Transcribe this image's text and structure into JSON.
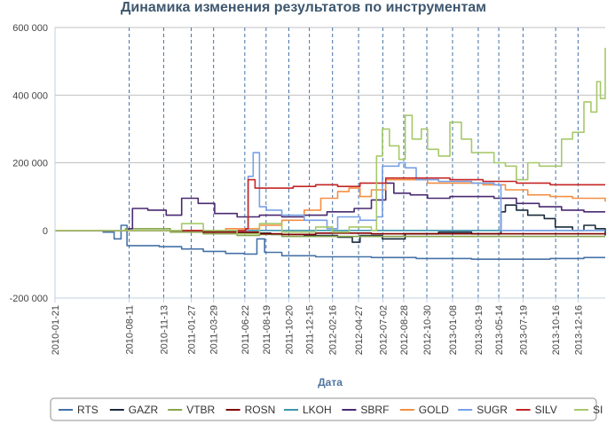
{
  "chart_data": {
    "type": "line",
    "title": "Динамика изменения результатов по инструментам",
    "xlabel": "Дата",
    "ylabel": "",
    "ylim": [
      -200000,
      600000
    ],
    "yticks": [
      -200000,
      0,
      200000,
      400000,
      600000
    ],
    "ytick_labels": [
      "-200 000",
      "0",
      "200 000",
      "400 000",
      "600 000"
    ],
    "xlim": [
      "2010-01-21",
      "2014-02-28"
    ],
    "xticks": [
      "2010-01-21",
      "2010-08-11",
      "2010-11-13",
      "2011-01-27",
      "2011-03-29",
      "2011-06-22",
      "2011-08-19",
      "2011-10-20",
      "2011-12-15",
      "2012-02-16",
      "2012-04-27",
      "2012-07-02",
      "2012-08-28",
      "2012-10-30",
      "2013-01-08",
      "2013-03-19",
      "2013-05-14",
      "2013-07-19",
      "2013-10-16",
      "2013-12-16"
    ],
    "grid": true,
    "legend": "bottom",
    "series": [
      {
        "name": "RTS",
        "color": "#4572a7",
        "points": [
          [
            "2010-01-21",
            0
          ],
          [
            "2010-06-01",
            -5000
          ],
          [
            "2010-07-01",
            -25000
          ],
          [
            "2010-07-20",
            15000
          ],
          [
            "2010-08-05",
            -45000
          ],
          [
            "2010-11-01",
            -48000
          ],
          [
            "2011-01-01",
            -55000
          ],
          [
            "2011-03-01",
            -62000
          ],
          [
            "2011-05-01",
            -68000
          ],
          [
            "2011-06-20",
            -70000
          ],
          [
            "2011-07-20",
            -70000
          ],
          [
            "2011-07-25",
            -25000
          ],
          [
            "2011-08-15",
            -65000
          ],
          [
            "2011-10-01",
            -75000
          ],
          [
            "2012-01-01",
            -78000
          ],
          [
            "2012-06-01",
            -80000
          ],
          [
            "2012-10-01",
            -83000
          ],
          [
            "2013-03-01",
            -85000
          ],
          [
            "2013-07-01",
            -85000
          ],
          [
            "2013-10-01",
            -83000
          ],
          [
            "2014-01-01",
            -80000
          ],
          [
            "2014-02-28",
            -80000
          ]
        ]
      },
      {
        "name": "GAZR",
        "color": "#1a2b3c",
        "points": [
          [
            "2010-01-21",
            0
          ],
          [
            "2010-12-01",
            -3000
          ],
          [
            "2011-06-01",
            -8000
          ],
          [
            "2011-09-01",
            -12000
          ],
          [
            "2011-12-01",
            -15000
          ],
          [
            "2012-03-01",
            -20000
          ],
          [
            "2012-04-10",
            -35000
          ],
          [
            "2012-05-01",
            -15000
          ],
          [
            "2012-07-01",
            -25000
          ],
          [
            "2012-09-01",
            -10000
          ],
          [
            "2012-12-01",
            -5000
          ],
          [
            "2013-03-01",
            -10000
          ],
          [
            "2013-05-10",
            -10000
          ],
          [
            "2013-05-20",
            55000
          ],
          [
            "2013-06-01",
            75000
          ],
          [
            "2013-07-01",
            60000
          ],
          [
            "2013-08-01",
            45000
          ],
          [
            "2013-09-15",
            35000
          ],
          [
            "2013-10-15",
            10000
          ],
          [
            "2013-12-01",
            0
          ],
          [
            "2014-01-01",
            15000
          ],
          [
            "2014-02-01",
            5000
          ],
          [
            "2014-02-28",
            -15000
          ]
        ]
      },
      {
        "name": "VTBR",
        "color": "#89a54e",
        "points": [
          [
            "2010-01-21",
            0
          ],
          [
            "2010-08-01",
            5000
          ],
          [
            "2010-12-01",
            -5000
          ],
          [
            "2011-03-01",
            -10000
          ],
          [
            "2011-06-01",
            -15000
          ],
          [
            "2011-08-01",
            -12000
          ],
          [
            "2011-10-01",
            -18000
          ],
          [
            "2012-01-01",
            -18000
          ],
          [
            "2012-06-01",
            -18000
          ],
          [
            "2013-01-01",
            -18000
          ],
          [
            "2013-06-01",
            -18000
          ],
          [
            "2014-02-28",
            -18000
          ]
        ]
      },
      {
        "name": "ROSN",
        "color": "#800000",
        "points": [
          [
            "2010-01-21",
            0
          ],
          [
            "2010-12-01",
            0
          ],
          [
            "2011-03-01",
            -5000
          ],
          [
            "2011-06-01",
            -5000
          ],
          [
            "2011-08-01",
            -10000
          ],
          [
            "2011-10-01",
            -12000
          ],
          [
            "2012-01-01",
            -8000
          ],
          [
            "2012-06-01",
            -10000
          ],
          [
            "2013-01-01",
            -10000
          ],
          [
            "2013-06-01",
            -10000
          ],
          [
            "2014-02-28",
            -10000
          ]
        ]
      },
      {
        "name": "LKOH",
        "color": "#3d96ae",
        "points": [
          [
            "2010-01-21",
            0
          ],
          [
            "2011-06-01",
            0
          ],
          [
            "2012-06-01",
            0
          ],
          [
            "2013-06-01",
            0
          ],
          [
            "2014-02-28",
            0
          ]
        ]
      },
      {
        "name": "SBRF",
        "color": "#492970",
        "points": [
          [
            "2010-01-21",
            0
          ],
          [
            "2010-08-10",
            5000
          ],
          [
            "2010-08-20",
            65000
          ],
          [
            "2010-10-01",
            60000
          ],
          [
            "2010-11-20",
            45000
          ],
          [
            "2011-01-01",
            95000
          ],
          [
            "2011-02-15",
            80000
          ],
          [
            "2011-04-01",
            50000
          ],
          [
            "2011-06-01",
            40000
          ],
          [
            "2011-08-01",
            45000
          ],
          [
            "2011-10-01",
            40000
          ],
          [
            "2011-12-01",
            45000
          ],
          [
            "2012-02-01",
            55000
          ],
          [
            "2012-04-15",
            65000
          ],
          [
            "2012-06-01",
            90000
          ],
          [
            "2012-07-10",
            140000
          ],
          [
            "2012-08-01",
            110000
          ],
          [
            "2012-09-15",
            105000
          ],
          [
            "2012-11-01",
            95000
          ],
          [
            "2013-01-01",
            100000
          ],
          [
            "2013-03-01",
            100000
          ],
          [
            "2013-05-01",
            95000
          ],
          [
            "2013-07-01",
            80000
          ],
          [
            "2013-09-01",
            70000
          ],
          [
            "2013-11-01",
            60000
          ],
          [
            "2014-01-01",
            55000
          ],
          [
            "2014-02-28",
            55000
          ]
        ]
      },
      {
        "name": "GOLD",
        "color": "#f28f43",
        "points": [
          [
            "2010-01-21",
            0
          ],
          [
            "2011-01-01",
            0
          ],
          [
            "2011-05-01",
            5000
          ],
          [
            "2011-08-01",
            15000
          ],
          [
            "2011-10-01",
            30000
          ],
          [
            "2011-12-01",
            60000
          ],
          [
            "2012-01-15",
            95000
          ],
          [
            "2012-03-01",
            115000
          ],
          [
            "2012-04-01",
            125000
          ],
          [
            "2012-05-01",
            100000
          ],
          [
            "2012-06-01",
            120000
          ],
          [
            "2012-07-10",
            150000
          ],
          [
            "2012-09-01",
            150000
          ],
          [
            "2012-11-01",
            140000
          ],
          [
            "2013-01-01",
            140000
          ],
          [
            "2013-04-01",
            135000
          ],
          [
            "2013-06-01",
            120000
          ],
          [
            "2013-08-01",
            105000
          ],
          [
            "2013-10-01",
            100000
          ],
          [
            "2013-12-01",
            95000
          ],
          [
            "2014-02-28",
            85000
          ]
        ]
      },
      {
        "name": "SUGR",
        "color": "#77a1e5",
        "points": [
          [
            "2010-01-21",
            0
          ],
          [
            "2011-01-01",
            0
          ],
          [
            "2011-06-15",
            0
          ],
          [
            "2011-07-01",
            160000
          ],
          [
            "2011-07-15",
            230000
          ],
          [
            "2011-08-01",
            70000
          ],
          [
            "2011-08-20",
            60000
          ],
          [
            "2011-10-01",
            45000
          ],
          [
            "2011-12-01",
            30000
          ],
          [
            "2012-02-01",
            5000
          ],
          [
            "2012-03-01",
            40000
          ],
          [
            "2012-05-01",
            30000
          ],
          [
            "2012-06-15",
            40000
          ],
          [
            "2012-07-01",
            190000
          ],
          [
            "2012-08-15",
            200000
          ],
          [
            "2012-09-01",
            185000
          ],
          [
            "2012-10-01",
            150000
          ],
          [
            "2012-12-01",
            145000
          ],
          [
            "2013-03-01",
            140000
          ],
          [
            "2013-05-01",
            135000
          ],
          [
            "2013-05-20",
            0
          ],
          [
            "2014-02-28",
            0
          ]
        ]
      },
      {
        "name": "SILV",
        "color": "#c42525",
        "points": [
          [
            "2010-01-21",
            0
          ],
          [
            "2011-01-01",
            0
          ],
          [
            "2011-06-25",
            5000
          ],
          [
            "2011-07-01",
            150000
          ],
          [
            "2011-07-20",
            125000
          ],
          [
            "2011-09-01",
            125000
          ],
          [
            "2011-11-01",
            130000
          ],
          [
            "2012-01-01",
            135000
          ],
          [
            "2012-03-01",
            130000
          ],
          [
            "2012-05-01",
            140000
          ],
          [
            "2012-07-10",
            155000
          ],
          [
            "2012-10-01",
            155000
          ],
          [
            "2013-01-01",
            150000
          ],
          [
            "2013-04-01",
            145000
          ],
          [
            "2013-07-01",
            140000
          ],
          [
            "2013-10-01",
            135000
          ],
          [
            "2014-02-28",
            135000
          ]
        ]
      },
      {
        "name": "SI",
        "color": "#a6c96a",
        "points": [
          [
            "2010-01-21",
            0
          ],
          [
            "2010-08-01",
            0
          ],
          [
            "2011-01-01",
            20000
          ],
          [
            "2011-03-01",
            0
          ],
          [
            "2011-06-01",
            -10000
          ],
          [
            "2011-08-01",
            20000
          ],
          [
            "2011-10-01",
            -5000
          ],
          [
            "2012-01-01",
            10000
          ],
          [
            "2012-02-15",
            -5000
          ],
          [
            "2012-04-01",
            10000
          ],
          [
            "2012-06-01",
            0
          ],
          [
            "2012-06-15",
            220000
          ],
          [
            "2012-07-01",
            300000
          ],
          [
            "2012-07-20",
            250000
          ],
          [
            "2012-08-15",
            210000
          ],
          [
            "2012-09-01",
            340000
          ],
          [
            "2012-09-20",
            270000
          ],
          [
            "2012-10-15",
            300000
          ],
          [
            "2012-11-01",
            240000
          ],
          [
            "2012-12-01",
            220000
          ],
          [
            "2013-01-01",
            320000
          ],
          [
            "2013-02-01",
            270000
          ],
          [
            "2013-03-01",
            230000
          ],
          [
            "2013-05-01",
            200000
          ],
          [
            "2013-06-01",
            190000
          ],
          [
            "2013-07-01",
            150000
          ],
          [
            "2013-08-01",
            200000
          ],
          [
            "2013-09-01",
            190000
          ],
          [
            "2013-11-01",
            270000
          ],
          [
            "2013-12-01",
            290000
          ],
          [
            "2014-01-01",
            380000
          ],
          [
            "2014-01-20",
            350000
          ],
          [
            "2014-02-05",
            440000
          ],
          [
            "2014-02-15",
            390000
          ],
          [
            "2014-02-28",
            540000
          ]
        ]
      }
    ]
  }
}
